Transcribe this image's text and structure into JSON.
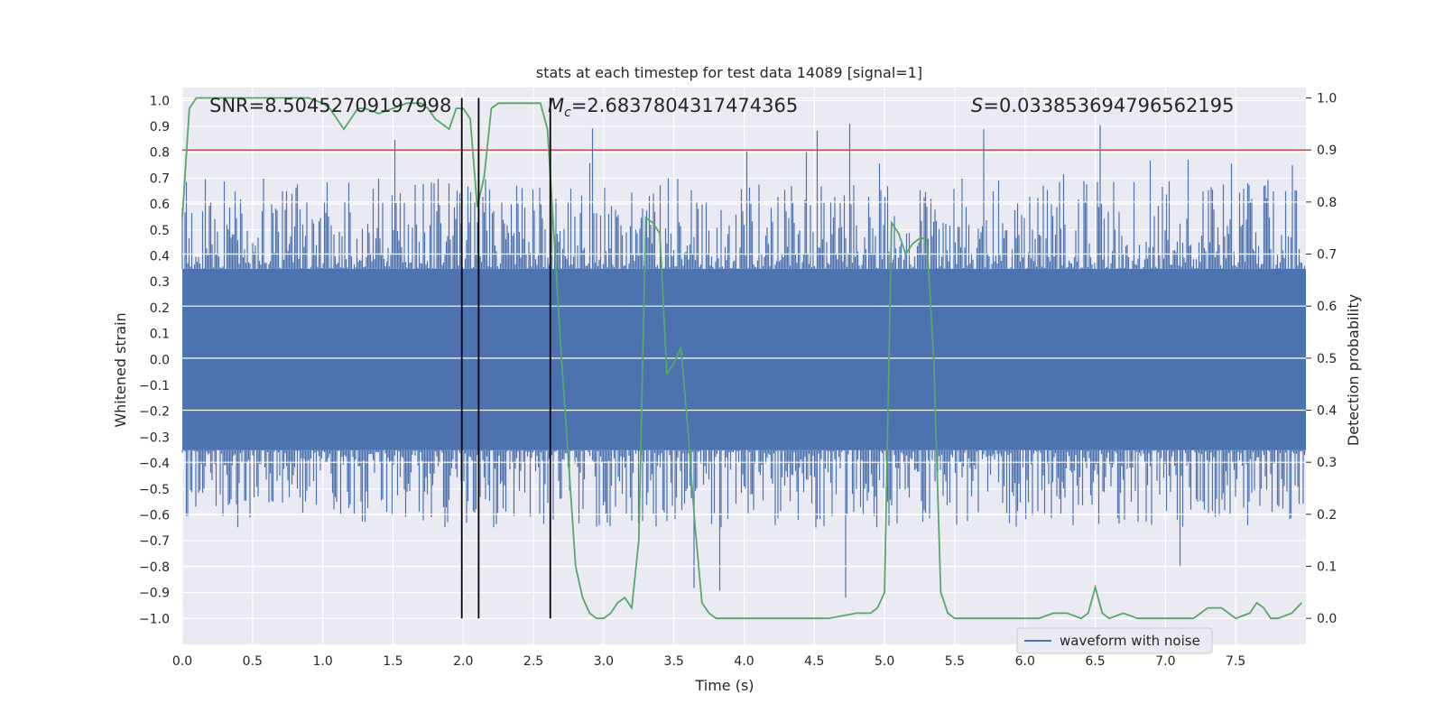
{
  "chart_data": {
    "type": "line",
    "title": "stats at each timestep for test data 14089 [signal=1]",
    "xlabel": "Time (s)",
    "ylabel_left": "Whitened strain",
    "ylabel_right": "Detection probability",
    "xlim": [
      0,
      8
    ],
    "ylim_left": [
      -1.1,
      1.05
    ],
    "ylim_right": [
      -0.05,
      1.02
    ],
    "x_ticks": [
      0.0,
      0.5,
      1.0,
      1.5,
      2.0,
      2.5,
      3.0,
      3.5,
      4.0,
      4.5,
      5.0,
      5.5,
      6.0,
      6.5,
      7.0,
      7.5
    ],
    "y_ticks_left": [
      -1.0,
      -0.9,
      -0.8,
      -0.7,
      -0.6,
      -0.5,
      -0.4,
      -0.3,
      -0.2,
      -0.1,
      0.0,
      0.1,
      0.2,
      0.3,
      0.4,
      0.5,
      0.6,
      0.7,
      0.8,
      0.9,
      1.0
    ],
    "y_ticks_right": [
      0.0,
      0.1,
      0.2,
      0.3,
      0.4,
      0.5,
      0.6,
      0.7,
      0.8,
      0.9,
      1.0
    ],
    "annotations": {
      "snr": "SNR=8.50452709197998",
      "mc": "=2.6837804317474365",
      "s": "=0.033853694796562195"
    },
    "threshold": {
      "value": 0.9,
      "axis": "right",
      "color": "#c44e52"
    },
    "vertical_lines": [
      1.99,
      2.11,
      2.62
    ],
    "legend": {
      "label": "waveform with noise",
      "placement": "lower-right"
    },
    "waveform": {
      "name": "waveform with noise",
      "color": "#4c72b0",
      "band_left": [
        -0.35,
        0.35
      ],
      "duration": 8.0
    },
    "probability": {
      "name": "Detection probability",
      "color": "#55a868",
      "x": [
        0.0,
        0.05,
        0.1,
        0.2,
        0.3,
        0.4,
        0.5,
        0.6,
        0.7,
        0.8,
        0.9,
        1.0,
        1.05,
        1.1,
        1.15,
        1.2,
        1.25,
        1.3,
        1.4,
        1.5,
        1.6,
        1.7,
        1.75,
        1.8,
        1.85,
        1.9,
        1.95,
        2.0,
        2.05,
        2.1,
        2.15,
        2.2,
        2.25,
        2.3,
        2.4,
        2.5,
        2.55,
        2.6,
        2.7,
        2.8,
        2.85,
        2.9,
        2.95,
        3.0,
        3.05,
        3.1,
        3.15,
        3.2,
        3.25,
        3.3,
        3.35,
        3.4,
        3.45,
        3.5,
        3.55,
        3.6,
        3.65,
        3.7,
        3.75,
        3.8,
        3.9,
        4.0,
        4.2,
        4.4,
        4.6,
        4.8,
        4.9,
        4.95,
        5.0,
        5.05,
        5.1,
        5.15,
        5.2,
        5.25,
        5.3,
        5.35,
        5.4,
        5.45,
        5.5,
        5.6,
        5.8,
        6.0,
        6.1,
        6.2,
        6.3,
        6.4,
        6.45,
        6.5,
        6.55,
        6.6,
        6.7,
        6.8,
        6.9,
        7.0,
        7.1,
        7.2,
        7.3,
        7.4,
        7.5,
        7.6,
        7.65,
        7.7,
        7.75,
        7.8,
        7.9,
        7.97
      ],
      "values": [
        0.77,
        0.98,
        1.0,
        1.0,
        1.0,
        1.0,
        1.0,
        1.0,
        1.0,
        1.0,
        1.0,
        0.99,
        0.98,
        0.96,
        0.94,
        0.96,
        0.98,
        0.98,
        0.97,
        0.98,
        0.99,
        0.99,
        0.98,
        0.96,
        0.95,
        0.94,
        0.98,
        0.98,
        0.96,
        0.79,
        0.85,
        0.98,
        0.99,
        0.99,
        0.99,
        0.99,
        0.99,
        0.94,
        0.5,
        0.1,
        0.04,
        0.01,
        0.0,
        0.0,
        0.01,
        0.03,
        0.04,
        0.02,
        0.15,
        0.77,
        0.76,
        0.74,
        0.47,
        0.49,
        0.52,
        0.36,
        0.18,
        0.03,
        0.01,
        0.0,
        0.0,
        0.0,
        0.0,
        0.0,
        0.0,
        0.01,
        0.01,
        0.02,
        0.05,
        0.76,
        0.74,
        0.7,
        0.72,
        0.73,
        0.73,
        0.5,
        0.05,
        0.01,
        0.0,
        0.0,
        0.0,
        0.0,
        0.0,
        0.01,
        0.01,
        0.0,
        0.01,
        0.06,
        0.01,
        0.0,
        0.01,
        0.0,
        0.0,
        0.0,
        0.0,
        0.0,
        0.02,
        0.02,
        0.0,
        0.01,
        0.03,
        0.02,
        0.0,
        0.0,
        0.01,
        0.03
      ]
    }
  }
}
